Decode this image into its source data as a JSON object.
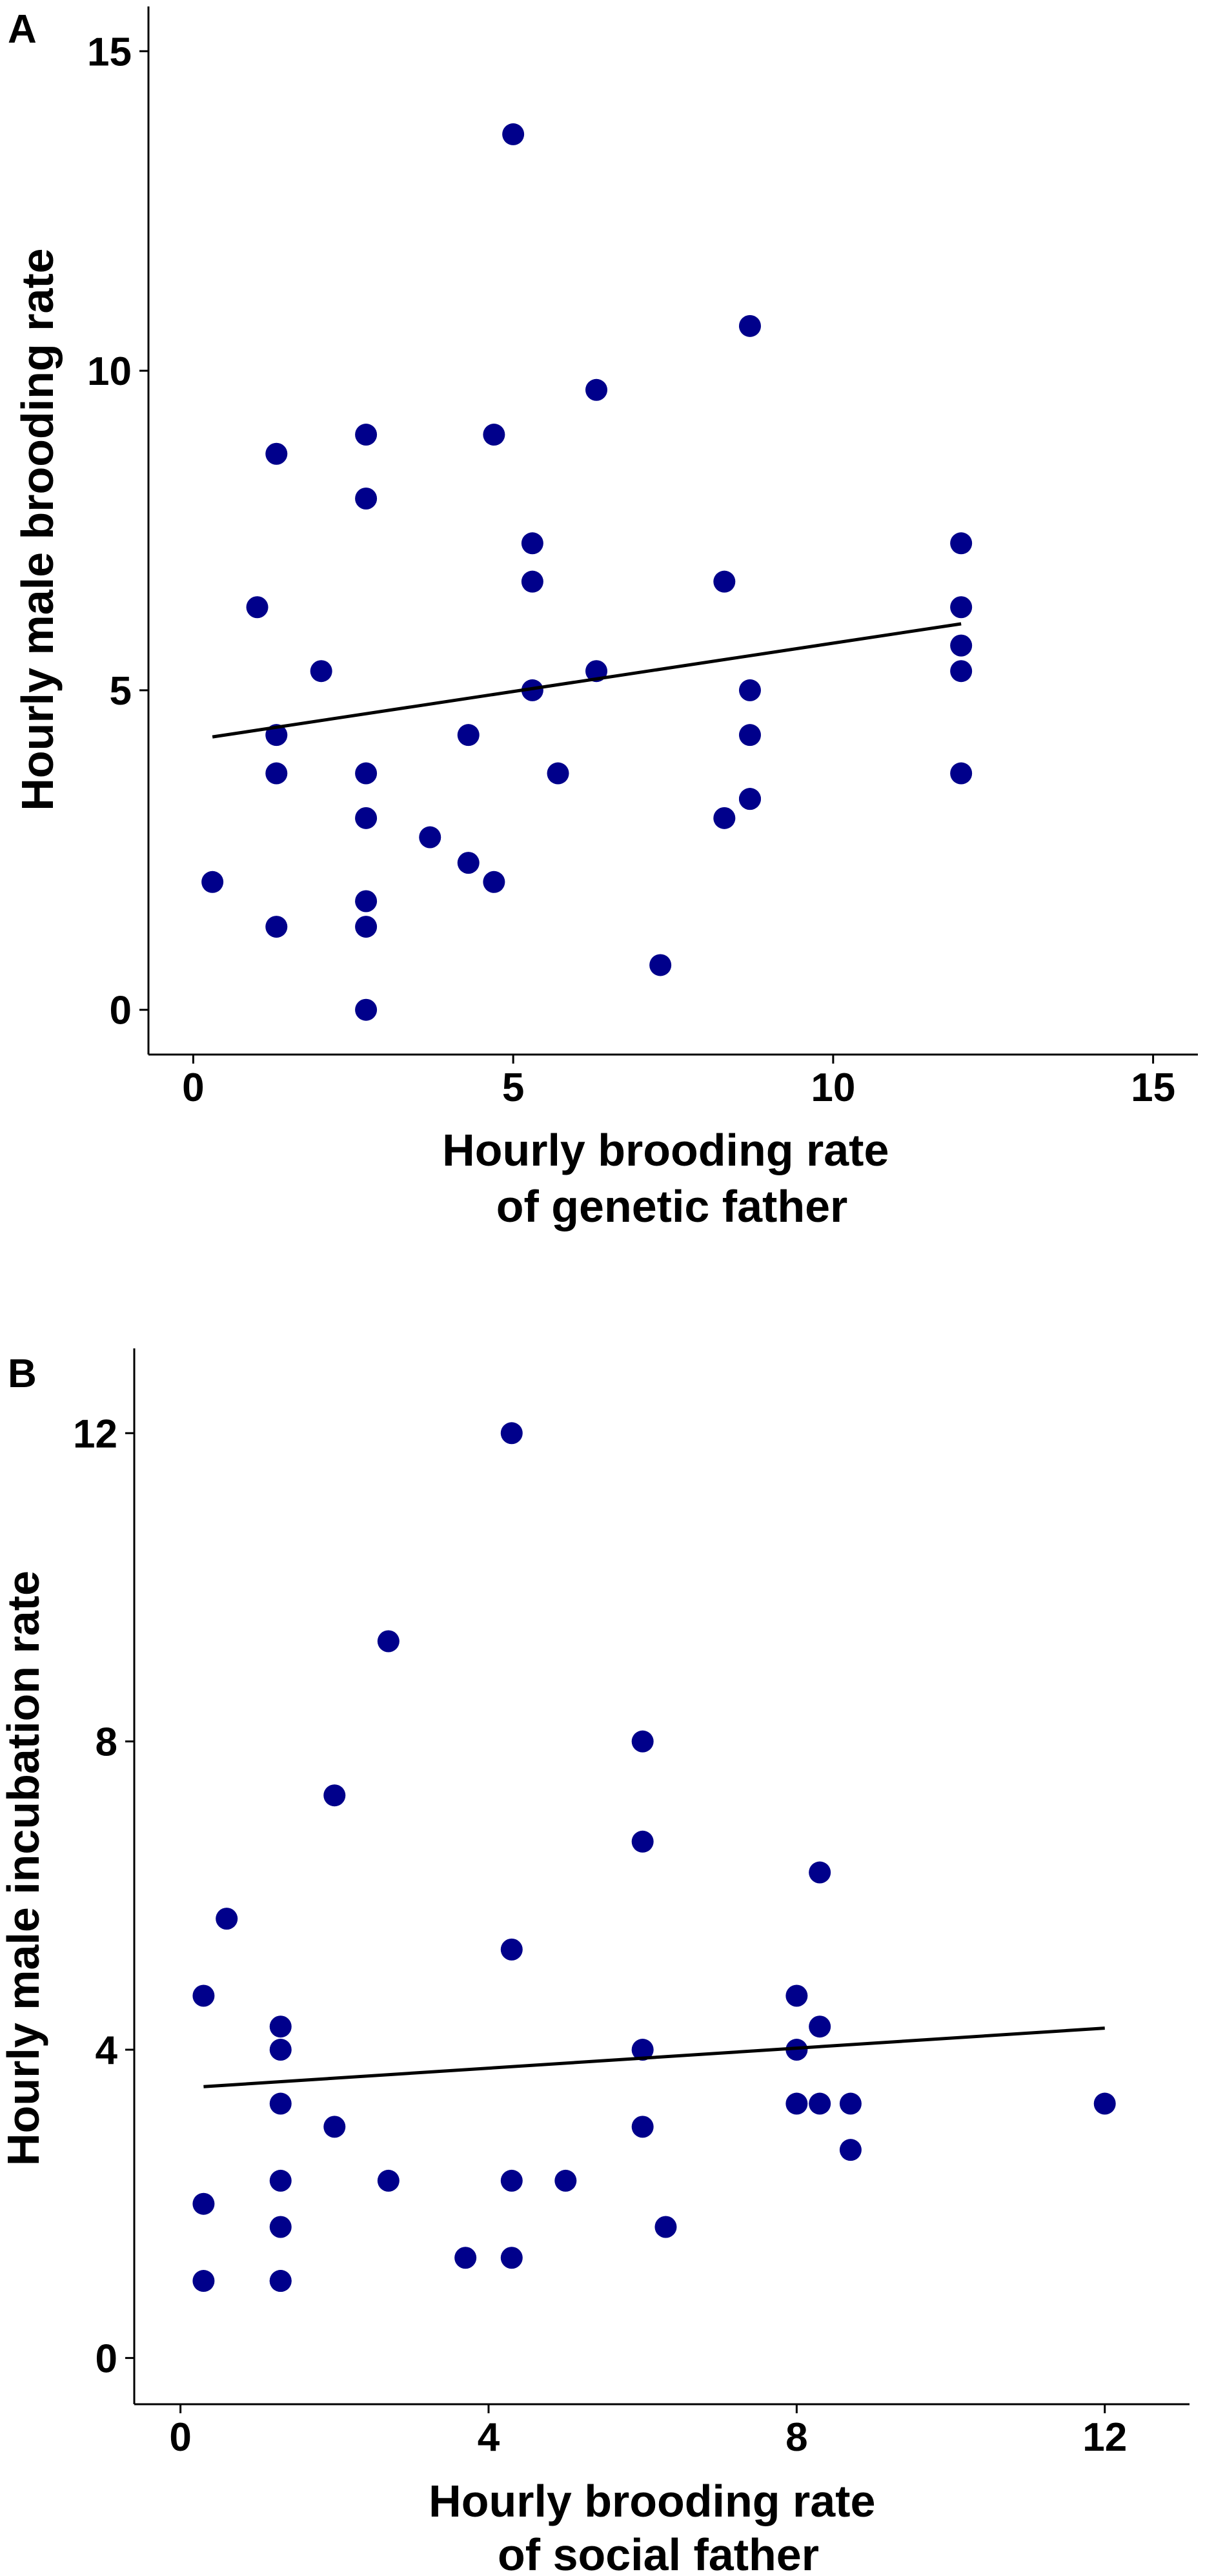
{
  "colors": {
    "point": "#00008b",
    "line": "#000000",
    "axis": "#000000",
    "background": "#ffffff"
  },
  "chart_data": [
    {
      "panel": "A",
      "type": "scatter",
      "title": "",
      "xlabel": [
        "Hourly brooding rate",
        "of genetic father"
      ],
      "ylabel": "Hourly male brooding rate",
      "xlim": [
        -0.7,
        15.7
      ],
      "ylim": [
        -0.7,
        15.7
      ],
      "xticks": [
        0,
        5,
        10,
        15
      ],
      "yticks": [
        0,
        5,
        10,
        15
      ],
      "x": [
        0.3,
        1.0,
        1.3,
        1.3,
        1.3,
        1.3,
        2.0,
        2.7,
        2.7,
        2.7,
        2.7,
        2.7,
        2.7,
        2.7,
        3.7,
        4.3,
        4.3,
        4.7,
        4.7,
        5.0,
        5.3,
        5.3,
        5.3,
        5.7,
        6.3,
        6.3,
        7.3,
        8.3,
        8.3,
        8.7,
        8.7,
        8.7,
        8.7,
        8.7,
        12.0,
        12.0,
        12.0,
        12.0,
        12.0
      ],
      "y": [
        2.0,
        6.3,
        8.7,
        4.3,
        3.7,
        1.3,
        5.3,
        9.0,
        8.0,
        3.7,
        3.0,
        1.7,
        1.3,
        0.0,
        2.7,
        4.3,
        2.3,
        9.0,
        2.0,
        13.7,
        7.3,
        6.7,
        5.0,
        3.7,
        9.7,
        5.3,
        0.7,
        6.7,
        3.0,
        10.7,
        5.0,
        4.3,
        3.3,
        3.3,
        7.3,
        6.3,
        5.7,
        5.3,
        3.7
      ],
      "fit_line": {
        "x": [
          0.3,
          12.0
        ],
        "y": [
          4.27,
          6.04
        ]
      }
    },
    {
      "panel": "B",
      "type": "scatter",
      "title": "",
      "xlabel": [
        "Hourly brooding rate",
        "of social father"
      ],
      "ylabel": "Hourly male incubation rate",
      "xlim": [
        -0.6,
        13.1
      ],
      "ylim": [
        -0.6,
        13.1
      ],
      "xticks": [
        0,
        4,
        8,
        12
      ],
      "yticks": [
        0,
        4,
        8,
        12
      ],
      "x": [
        0.3,
        0.3,
        0.3,
        0.6,
        1.3,
        1.3,
        1.3,
        1.3,
        1.3,
        1.3,
        1.3,
        2.0,
        2.0,
        2.7,
        2.7,
        3.7,
        4.3,
        4.3,
        4.3,
        4.3,
        5.0,
        6.0,
        6.0,
        6.0,
        6.0,
        6.3,
        8.0,
        8.0,
        8.0,
        8.3,
        8.3,
        8.3,
        8.7,
        8.7,
        12.0
      ],
      "y": [
        4.7,
        2.0,
        1.0,
        5.7,
        4.3,
        4.0,
        3.3,
        2.3,
        1.7,
        1.0,
        1.0,
        7.3,
        3.0,
        9.3,
        2.3,
        1.3,
        12.0,
        5.3,
        2.3,
        1.3,
        2.3,
        8.0,
        6.7,
        4.0,
        3.0,
        1.7,
        4.7,
        4.0,
        3.3,
        6.3,
        4.3,
        3.3,
        3.3,
        2.7,
        3.3
      ],
      "fit_line": {
        "x": [
          0.3,
          12.0
        ],
        "y": [
          3.52,
          4.28
        ]
      }
    }
  ]
}
